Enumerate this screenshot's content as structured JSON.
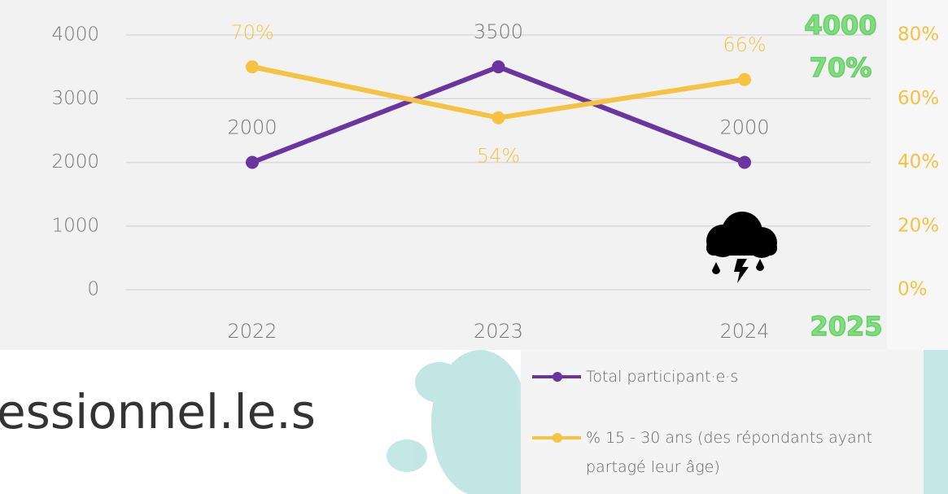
{
  "chart_data": {
    "type": "line",
    "categories": [
      "2022",
      "2023",
      "2024"
    ],
    "series": [
      {
        "name": "Total participant·e·s",
        "color": "#6b35a0",
        "values": [
          2000,
          3500,
          2000
        ]
      },
      {
        "name": "% 15 - 30 ans (des répondants ayant partagé leur âge)",
        "color": "#f5c242",
        "values": [
          70,
          54,
          66
        ],
        "value_labels": [
          "70%",
          "54%",
          "66%"
        ],
        "axis": "y2"
      }
    ],
    "ylim": [
      0,
      4000
    ],
    "yticks": [
      0,
      1000,
      2000,
      3000,
      4000
    ],
    "y2lim": [
      0,
      80
    ],
    "y2ticks": [
      {
        "value": 0,
        "label": "0%"
      },
      {
        "value": 20,
        "label": "20%"
      },
      {
        "value": 40,
        "label": "40%"
      },
      {
        "value": 60,
        "label": "60%"
      },
      {
        "value": 80,
        "label": "80%"
      }
    ],
    "grid": true,
    "annotations": [
      "4000",
      "70%",
      "2025"
    ]
  },
  "page_text": "essionnel.le.s"
}
